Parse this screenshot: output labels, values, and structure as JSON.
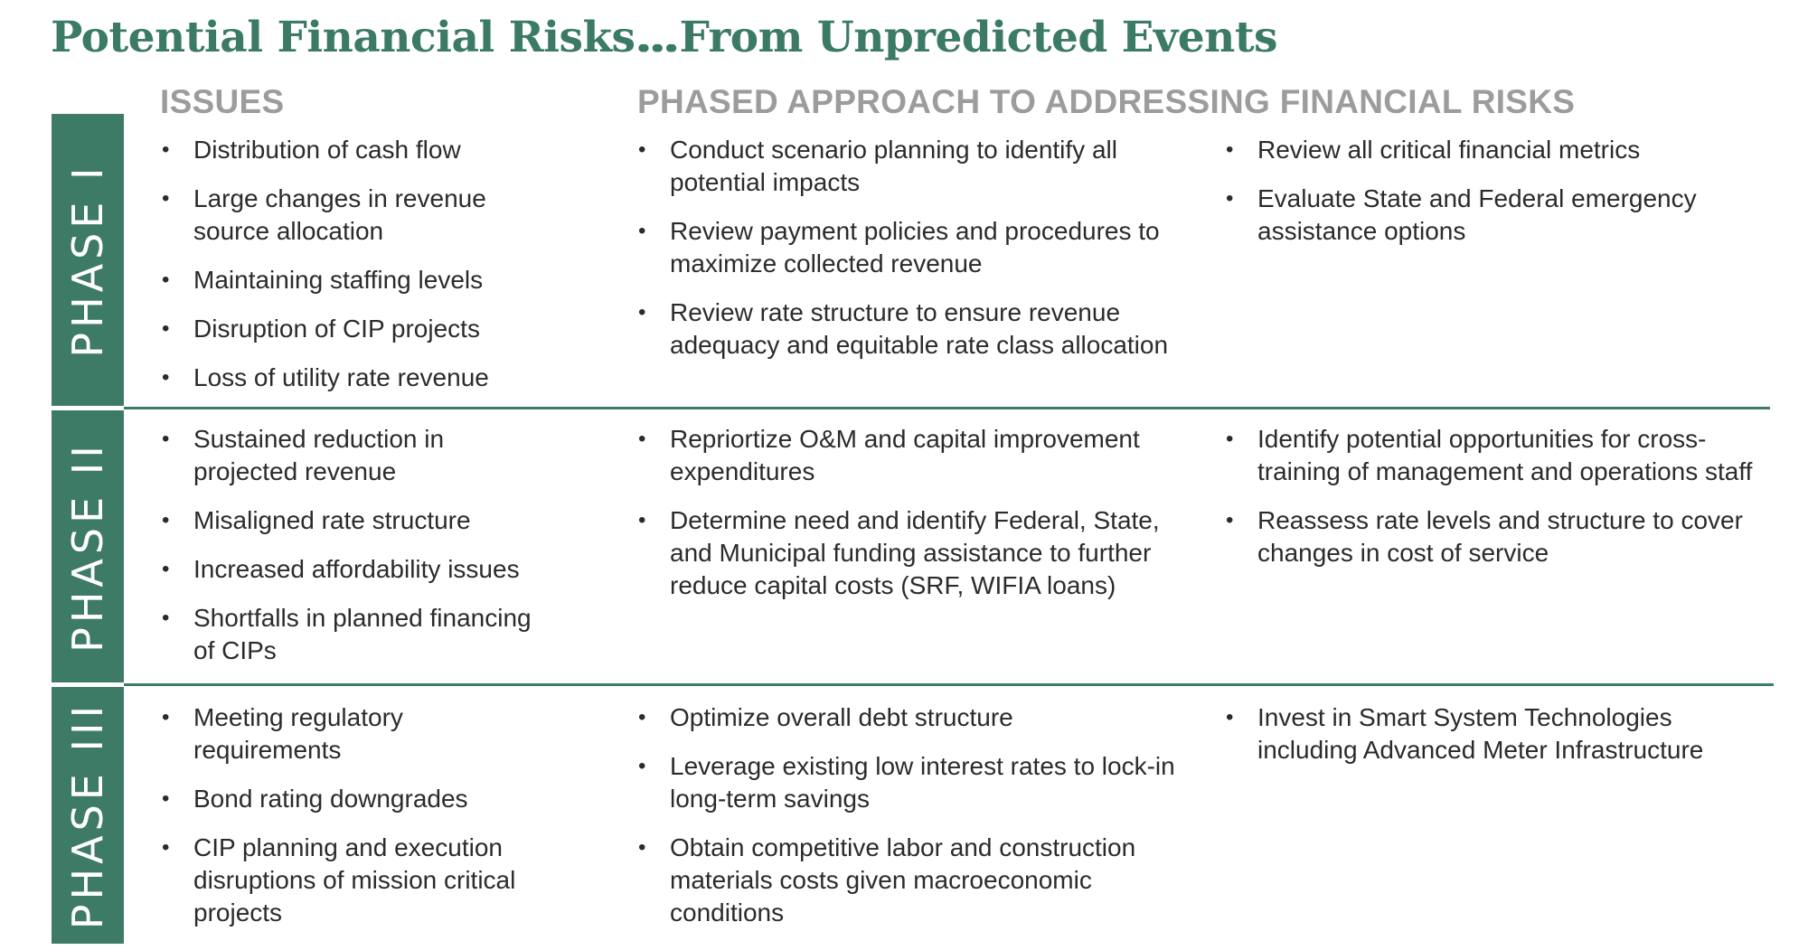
{
  "titles": {
    "left": "Potential Financial Risks…",
    "right": "…From Unpredicted Events"
  },
  "headers": {
    "issues": "ISSUES",
    "approach": "PHASED APPROACH TO ADDRESSING FINANCIAL RISKS"
  },
  "phases": [
    {
      "label": "PHASE I",
      "issues": [
        "Distribution of cash flow",
        "Large changes in revenue source allocation",
        "Maintaining staffing levels",
        "Disruption of CIP projects",
        "Loss of utility rate revenue"
      ],
      "approach_a": [
        "Conduct scenario planning to identify all potential impacts",
        "Review payment policies and procedures to maximize collected revenue",
        "Review rate structure to ensure revenue adequacy and equitable rate class allocation"
      ],
      "approach_b": [
        "Review all critical financial metrics",
        "Evaluate State and Federal emergency assistance options"
      ]
    },
    {
      "label": "PHASE II",
      "issues": [
        "Sustained reduction in projected revenue",
        "Misaligned rate structure",
        "Increased affordability issues",
        "Shortfalls in planned financing of CIPs"
      ],
      "approach_a": [
        "Repriortize O&M and capital improvement expenditures",
        "Determine need and identify Federal, State, and Municipal funding assistance to further reduce capital costs (SRF, WIFIA loans)"
      ],
      "approach_b": [
        "Identify potential opportunities for cross-training of management and operations staff",
        "Reassess rate levels and structure to cover changes in cost of service"
      ]
    },
    {
      "label": "PHASE III",
      "issues": [
        "Meeting regulatory requirements",
        "Bond rating downgrades",
        "CIP planning and execution disruptions of mission critical projects"
      ],
      "approach_a": [
        "Optimize overall debt structure",
        "Leverage existing low interest rates to lock-in long-term savings",
        "Obtain competitive labor and construction materials costs given macroeconomic conditions"
      ],
      "approach_b": [
        "Invest in Smart System Technologies including Advanced Meter Infrastructure"
      ]
    }
  ]
}
